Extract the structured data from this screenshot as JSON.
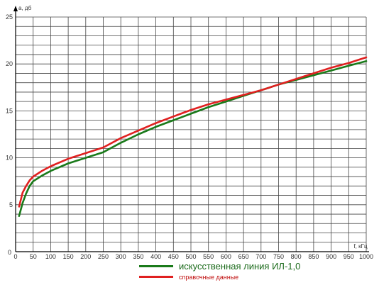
{
  "chart_data": {
    "type": "line",
    "xlabel": "f, кГц",
    "ylabel": "a, дб",
    "xlim": [
      0,
      1000
    ],
    "ylim": [
      0,
      25
    ],
    "x_ticks": [
      0,
      50,
      100,
      150,
      200,
      250,
      300,
      350,
      400,
      450,
      500,
      550,
      600,
      650,
      700,
      750,
      800,
      850,
      900,
      950,
      1000
    ],
    "x_tick_labels": [
      "0",
      "50",
      "100",
      "150",
      "200",
      "250",
      "300",
      "350",
      "400",
      "450",
      "500",
      "550",
      "600",
      "650",
      "700",
      "750",
      "800",
      "850",
      "900",
      "950",
      "1000"
    ],
    "y_ticks": [
      5,
      10,
      15,
      20,
      25
    ],
    "y_tick_labels": [
      "5",
      "10",
      "15",
      "20",
      "25"
    ],
    "grid": true,
    "legend_position": "bottom",
    "series": [
      {
        "name": "искусственная линия ИЛ-1,0",
        "color": "#1a7a1a",
        "x": [
          10,
          20,
          30,
          40,
          50,
          75,
          100,
          150,
          200,
          250,
          300,
          350,
          400,
          450,
          500,
          550,
          600,
          650,
          700,
          750,
          800,
          850,
          900,
          950,
          1000
        ],
        "y": [
          3.8,
          5.2,
          6.2,
          7.0,
          7.5,
          8.1,
          8.6,
          9.4,
          10.0,
          10.6,
          11.6,
          12.5,
          13.3,
          14.0,
          14.7,
          15.4,
          16.0,
          16.6,
          17.2,
          17.8,
          18.3,
          18.8,
          19.3,
          19.8,
          20.3
        ]
      },
      {
        "name": "справочные данные",
        "color": "#e02020",
        "x": [
          10,
          20,
          30,
          40,
          50,
          75,
          100,
          150,
          200,
          250,
          300,
          350,
          400,
          450,
          500,
          550,
          600,
          650,
          700,
          750,
          800,
          850,
          900,
          950,
          1000
        ],
        "y": [
          4.8,
          6.3,
          7.0,
          7.6,
          8.0,
          8.6,
          9.1,
          9.9,
          10.5,
          11.1,
          12.1,
          12.9,
          13.7,
          14.4,
          15.1,
          15.7,
          16.2,
          16.7,
          17.2,
          17.8,
          18.4,
          19.0,
          19.6,
          20.1,
          20.7
        ]
      }
    ]
  }
}
